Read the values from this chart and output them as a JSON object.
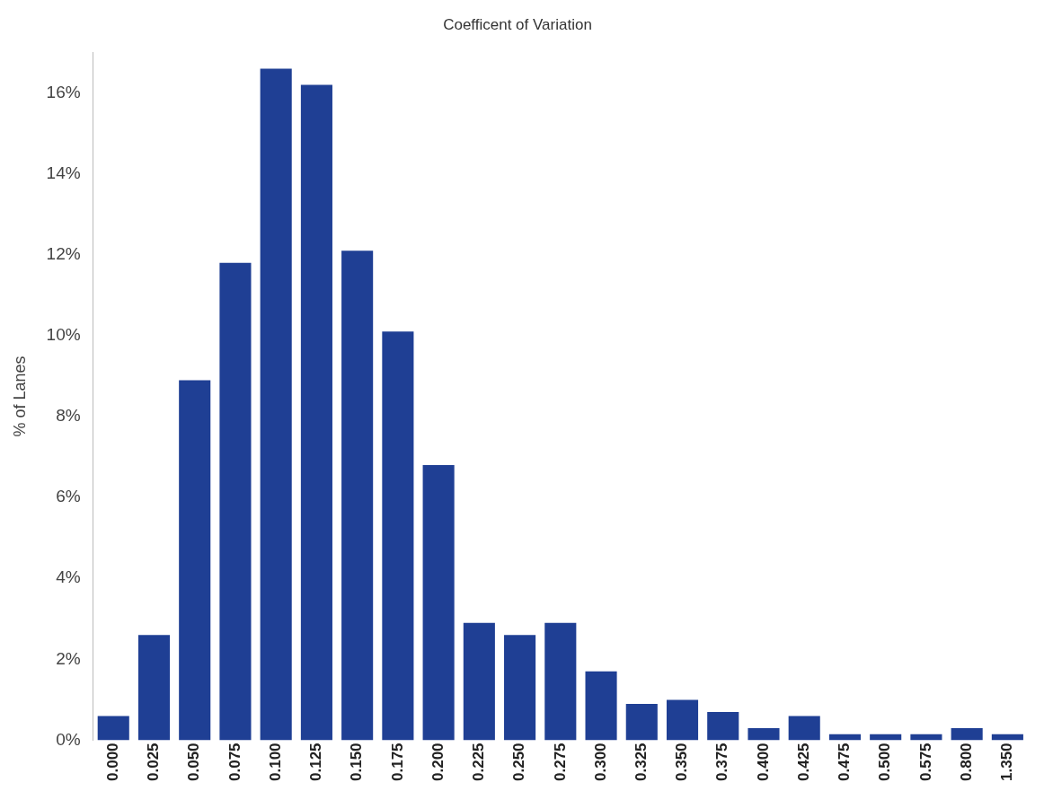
{
  "chart_data": {
    "type": "bar",
    "title": "Coefficent of Variation",
    "ylabel": "% of Lanes",
    "categories": [
      "0.000",
      "0.025",
      "0.050",
      "0.075",
      "0.100",
      "0.125",
      "0.150",
      "0.175",
      "0.200",
      "0.225",
      "0.250",
      "0.275",
      "0.300",
      "0.325",
      "0.350",
      "0.375",
      "0.400",
      "0.425",
      "0.475",
      "0.500",
      "0.575",
      "0.800",
      "1.350"
    ],
    "values": [
      0.6,
      2.6,
      8.9,
      11.8,
      16.6,
      16.2,
      12.1,
      10.1,
      6.8,
      2.9,
      2.6,
      2.9,
      1.7,
      0.9,
      1.0,
      0.7,
      0.3,
      0.6,
      0.15,
      0.15,
      0.15,
      0.3,
      0.15
    ],
    "color": "#1f3f94",
    "ylim": [
      0,
      17
    ],
    "yticks": [
      {
        "value": 0,
        "label": "0%"
      },
      {
        "value": 2,
        "label": "2%"
      },
      {
        "value": 4,
        "label": "4%"
      },
      {
        "value": 6,
        "label": "6%"
      },
      {
        "value": 8,
        "label": "8%"
      },
      {
        "value": 10,
        "label": "10%"
      },
      {
        "value": 12,
        "label": "12%"
      },
      {
        "value": 14,
        "label": "14%"
      },
      {
        "value": 16,
        "label": "16%"
      }
    ],
    "grid": false,
    "legend": false
  }
}
